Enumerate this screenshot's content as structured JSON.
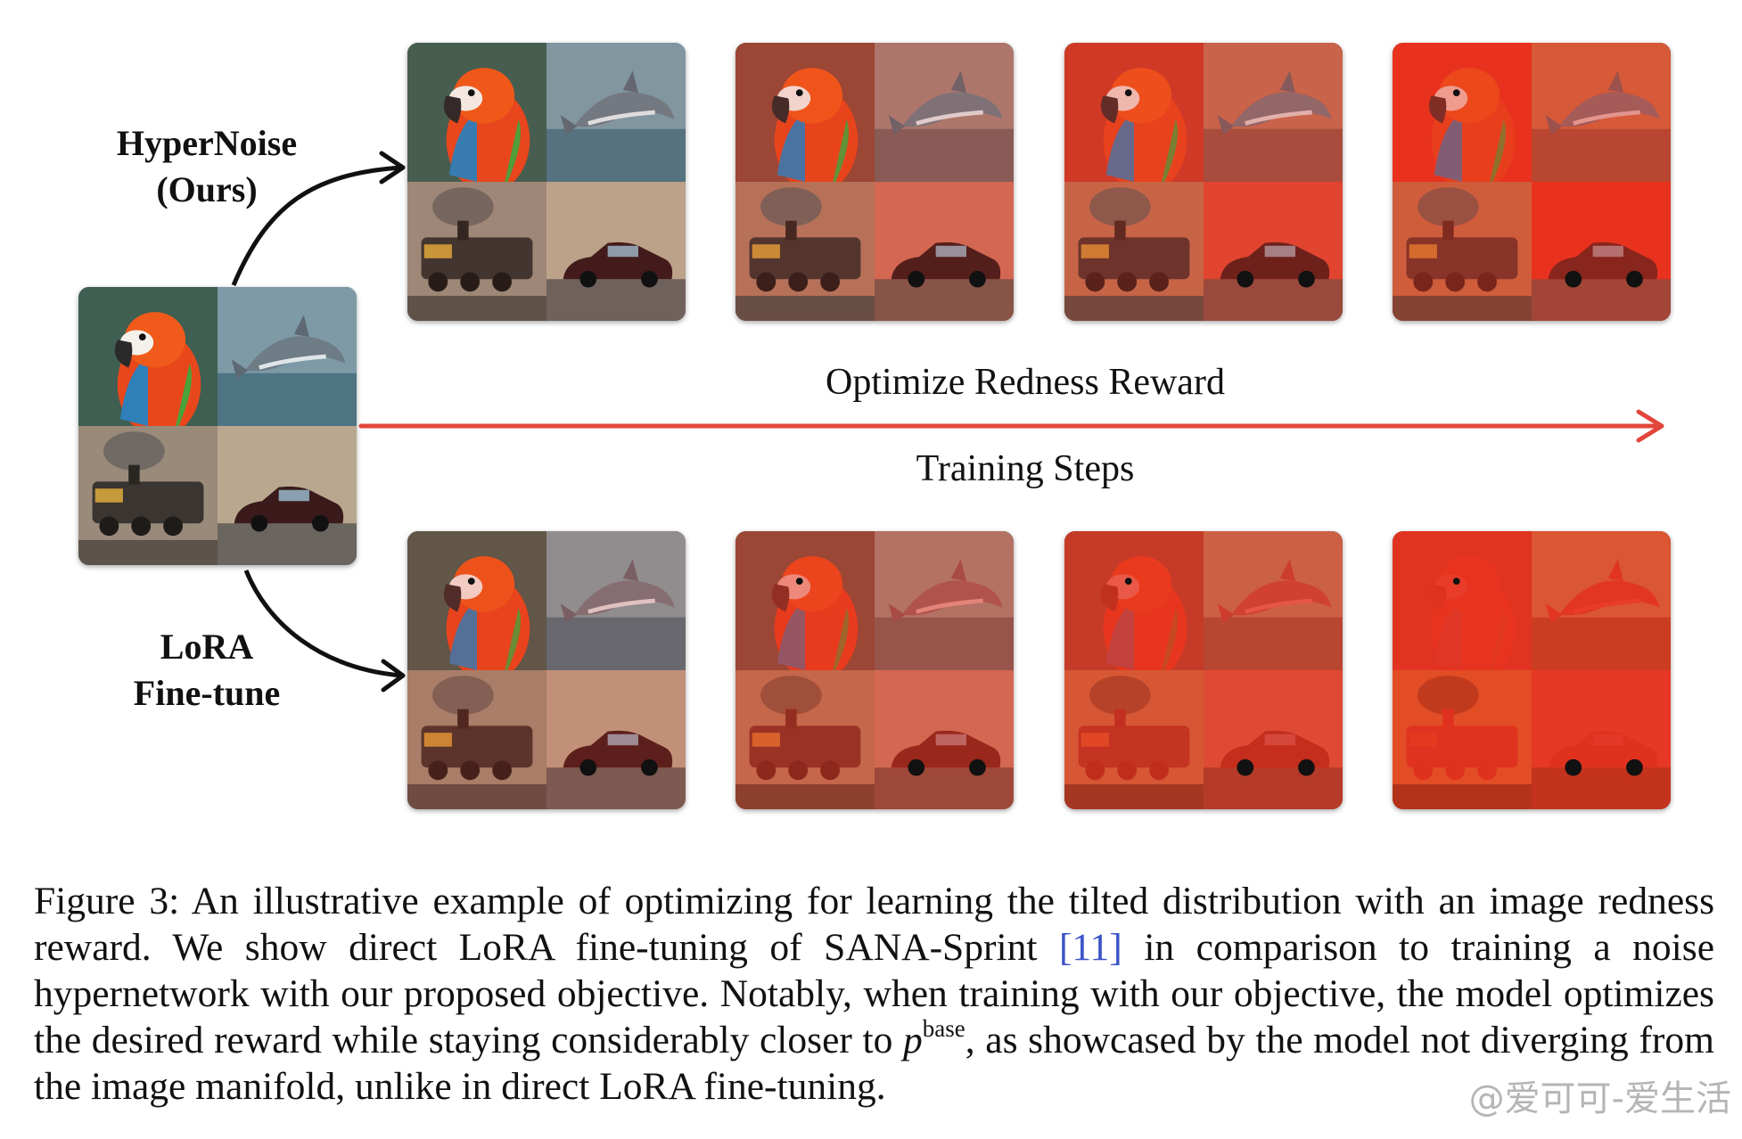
{
  "labels": {
    "hypernoise_line1": "HyperNoise",
    "hypernoise_line2": "(Ours)",
    "lora_line1": "LoRA",
    "lora_line2": "Fine-tune"
  },
  "axis": {
    "top_text": "Optimize Redness Reward",
    "bottom_text": "Training Steps",
    "arrow_color": "#e2463a"
  },
  "caption": {
    "prefix": "Figure 3: An illustrative example of optimizing for learning the tilted distribution with an image redness reward. We show direct LoRA fine-tuning of SANA-Sprint ",
    "ref": "[11]",
    "middle": " in comparison to training a noise hypernetwork with our proposed objective. Notably, when training with our objective, the model optimizes the desired reward while staying considerably closer to ",
    "symbol": "p",
    "superscript": "base",
    "suffix": ", as showcased by the model not diverging from the image manifold, unlike in direct LoRA fine-tuning."
  },
  "watermark": "@爱可可-爱生活",
  "image_subjects": [
    "parrot-icon",
    "dolphin-icon",
    "steam-train-icon",
    "car-icon"
  ]
}
